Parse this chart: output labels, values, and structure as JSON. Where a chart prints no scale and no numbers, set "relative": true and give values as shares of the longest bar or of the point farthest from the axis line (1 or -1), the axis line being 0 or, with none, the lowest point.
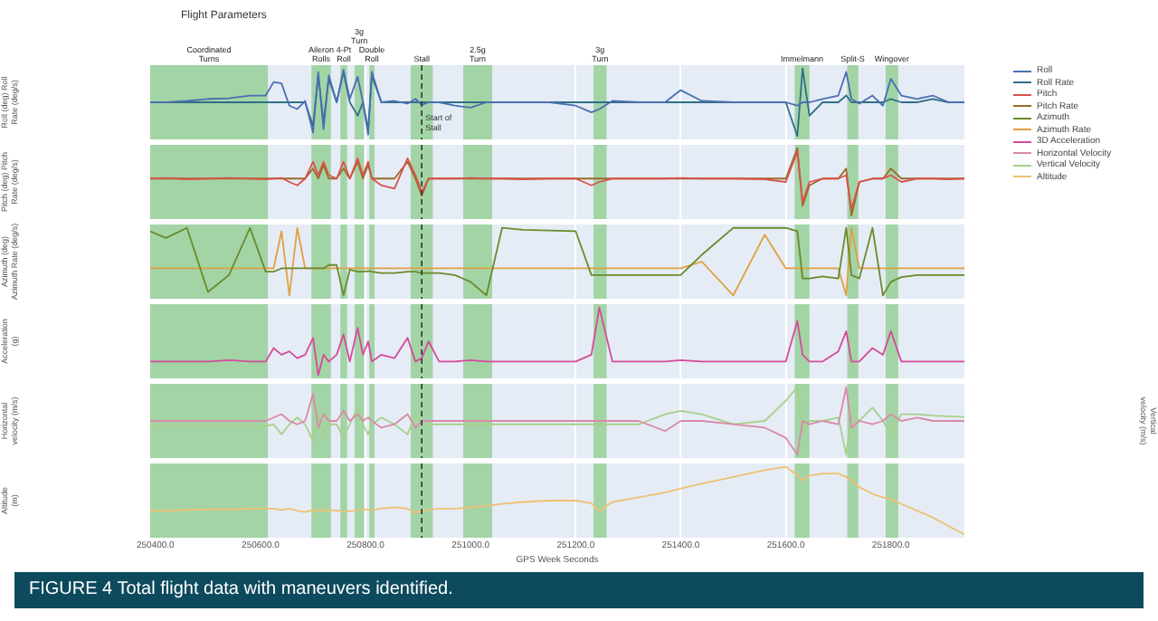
{
  "chart_data": [
    {
      "type": "line",
      "title": "Flight Parameters",
      "ylabel": "Roll (deg) Roll Rate (deg/s)",
      "relative": true,
      "legend": "right",
      "marker": "none",
      "line_style": "solid",
      "grid": "x",
      "tick_labels": false,
      "xlim": [
        250390,
        251940
      ],
      "xticks": [
        250400,
        250600,
        250800,
        251000,
        251200,
        251400,
        251600,
        251800
      ],
      "x": [
        250390,
        250420,
        250460,
        250500,
        250540,
        250580,
        250610,
        250625,
        250640,
        250655,
        250670,
        250685,
        250700,
        250710,
        250720,
        250730,
        250745,
        250758,
        250770,
        250785,
        250795,
        250805,
        250812,
        250830,
        250855,
        250880,
        250895,
        250907,
        250920,
        250940,
        250970,
        251000,
        251030,
        251060,
        251100,
        251150,
        251200,
        251230,
        251245,
        251270,
        251320,
        251370,
        251400,
        251440,
        251500,
        251560,
        251600,
        251622,
        251632,
        251645,
        251670,
        251700,
        251715,
        251725,
        251740,
        251765,
        251785,
        251800,
        251820,
        251850,
        251880,
        251910,
        251940
      ],
      "series": [
        {
          "name": "Roll",
          "color": "#4a6fb0",
          "values": [
            0.5,
            0.5,
            0.52,
            0.55,
            0.56,
            0.6,
            0.6,
            0.8,
            0.78,
            0.45,
            0.4,
            0.52,
            0.05,
            0.95,
            0.1,
            0.9,
            0.5,
            0.98,
            0.55,
            0.88,
            0.5,
            0.02,
            0.95,
            0.5,
            0.52,
            0.48,
            0.55,
            0.46,
            0.5,
            0.5,
            0.45,
            0.42,
            0.5,
            0.5,
            0.5,
            0.5,
            0.45,
            0.35,
            0.4,
            0.52,
            0.5,
            0.5,
            0.68,
            0.52,
            0.5,
            0.5,
            0.5,
            0.45,
            0.5,
            0.5,
            0.55,
            0.6,
            0.95,
            0.55,
            0.48,
            0.6,
            0.45,
            0.85,
            0.6,
            0.55,
            0.6,
            0.5,
            0.5
          ]
        },
        {
          "name": "Roll Rate",
          "color": "#2f6f86",
          "values": [
            0.5,
            0.5,
            0.5,
            0.5,
            0.5,
            0.5,
            0.5,
            0.5,
            0.5,
            0.5,
            0.5,
            0.5,
            0.15,
            0.9,
            0.2,
            0.85,
            0.5,
            0.95,
            0.5,
            0.3,
            0.5,
            0.1,
            0.9,
            0.5,
            0.5,
            0.5,
            0.5,
            0.5,
            0.5,
            0.5,
            0.5,
            0.5,
            0.5,
            0.5,
            0.5,
            0.5,
            0.5,
            0.5,
            0.5,
            0.5,
            0.5,
            0.5,
            0.5,
            0.5,
            0.5,
            0.5,
            0.5,
            0.0,
            1.0,
            0.3,
            0.5,
            0.5,
            0.6,
            0.5,
            0.5,
            0.5,
            0.5,
            0.55,
            0.5,
            0.5,
            0.55,
            0.5,
            0.5
          ]
        }
      ],
      "bands": [
        {
          "axis": "x",
          "from": 250390,
          "to": 250614,
          "label": "Coordinated Turns",
          "color": "#a3d4a6"
        },
        {
          "axis": "x",
          "from": 250697,
          "to": 250734,
          "label": "Aileron Rolls",
          "color": "#a3d4a6"
        },
        {
          "axis": "x",
          "from": 250752,
          "to": 250765,
          "label": "4-Pt Roll",
          "color": "#a3d4a6"
        },
        {
          "axis": "x",
          "from": 250779,
          "to": 250797,
          "label": "3g Turn",
          "color": "#a3d4a6"
        },
        {
          "axis": "x",
          "from": 250807,
          "to": 250817,
          "label": "Double Roll",
          "color": "#a3d4a6"
        },
        {
          "axis": "x",
          "from": 250886,
          "to": 250928,
          "label": "Stall",
          "color": "#a3d4a6"
        },
        {
          "axis": "x",
          "from": 250986,
          "to": 251041,
          "label": "2.5g Turn",
          "color": "#a3d4a6"
        },
        {
          "axis": "x",
          "from": 251234,
          "to": 251259,
          "label": "3g Turn",
          "color": "#a3d4a6"
        },
        {
          "axis": "x",
          "from": 251617,
          "to": 251645,
          "label": "Immelmann",
          "color": "#a3d4a6"
        },
        {
          "axis": "x",
          "from": 251717,
          "to": 251738,
          "label": "Split-S",
          "color": "#a3d4a6"
        },
        {
          "axis": "x",
          "from": 251790,
          "to": 251814,
          "label": "Wingover",
          "color": "#a3d4a6"
        }
      ],
      "ref_lines": [
        {
          "axis": "x",
          "value": 250907,
          "label": "Start of Stall",
          "color": "#333333",
          "line_style": "dashed"
        }
      ]
    },
    {
      "type": "line",
      "ylabel": "Pitch (deg) Pitch Rate (deg/s)",
      "relative": true,
      "legend": "right",
      "marker": "none",
      "line_style": "solid",
      "grid": "x",
      "tick_labels": false,
      "xlim": [
        250390,
        251940
      ],
      "xticks": [
        250400,
        250600,
        250800,
        251000,
        251200,
        251400,
        251600,
        251800
      ],
      "x": [
        250390,
        250420,
        250460,
        250500,
        250540,
        250580,
        250610,
        250625,
        250640,
        250655,
        250670,
        250685,
        250700,
        250710,
        250720,
        250730,
        250745,
        250758,
        250770,
        250785,
        250795,
        250805,
        250812,
        250830,
        250855,
        250880,
        250895,
        250907,
        250920,
        250940,
        250970,
        251000,
        251030,
        251060,
        251100,
        251150,
        251200,
        251230,
        251245,
        251270,
        251320,
        251370,
        251400,
        251440,
        251500,
        251560,
        251600,
        251622,
        251632,
        251645,
        251670,
        251700,
        251715,
        251725,
        251740,
        251765,
        251785,
        251800,
        251820,
        251850,
        251880,
        251910,
        251940
      ],
      "series": [
        {
          "name": "Pitch",
          "color": "#d9534a",
          "values": [
            0.55,
            0.56,
            0.54,
            0.55,
            0.56,
            0.55,
            0.54,
            0.55,
            0.56,
            0.5,
            0.45,
            0.55,
            0.8,
            0.6,
            0.8,
            0.6,
            0.55,
            0.8,
            0.55,
            0.85,
            0.6,
            0.8,
            0.55,
            0.45,
            0.4,
            0.85,
            0.6,
            0.35,
            0.55,
            0.55,
            0.55,
            0.56,
            0.55,
            0.55,
            0.54,
            0.55,
            0.55,
            0.45,
            0.5,
            0.55,
            0.55,
            0.55,
            0.56,
            0.55,
            0.55,
            0.54,
            0.5,
            0.95,
            0.2,
            0.5,
            0.55,
            0.55,
            0.6,
            0.1,
            0.5,
            0.55,
            0.55,
            0.6,
            0.5,
            0.55,
            0.55,
            0.54,
            0.55
          ]
        },
        {
          "name": "Pitch Rate",
          "color": "#9b6a2a",
          "values": [
            0.55,
            0.55,
            0.55,
            0.55,
            0.55,
            0.55,
            0.55,
            0.55,
            0.55,
            0.55,
            0.55,
            0.55,
            0.7,
            0.55,
            0.75,
            0.55,
            0.55,
            0.7,
            0.55,
            0.8,
            0.55,
            0.75,
            0.55,
            0.55,
            0.55,
            0.8,
            0.55,
            0.3,
            0.55,
            0.55,
            0.55,
            0.55,
            0.55,
            0.55,
            0.55,
            0.55,
            0.55,
            0.55,
            0.55,
            0.55,
            0.55,
            0.55,
            0.55,
            0.55,
            0.55,
            0.55,
            0.55,
            1.0,
            0.15,
            0.45,
            0.55,
            0.55,
            0.7,
            0.0,
            0.5,
            0.55,
            0.55,
            0.7,
            0.55,
            0.55,
            0.55,
            0.55,
            0.55
          ]
        }
      ],
      "bands": [
        {
          "axis": "x",
          "from": 250390,
          "to": 250614,
          "color": "#a3d4a6"
        },
        {
          "axis": "x",
          "from": 250697,
          "to": 250734,
          "color": "#a3d4a6"
        },
        {
          "axis": "x",
          "from": 250752,
          "to": 250765,
          "color": "#a3d4a6"
        },
        {
          "axis": "x",
          "from": 250779,
          "to": 250797,
          "color": "#a3d4a6"
        },
        {
          "axis": "x",
          "from": 250807,
          "to": 250817,
          "color": "#a3d4a6"
        },
        {
          "axis": "x",
          "from": 250886,
          "to": 250928,
          "color": "#a3d4a6"
        },
        {
          "axis": "x",
          "from": 250986,
          "to": 251041,
          "color": "#a3d4a6"
        },
        {
          "axis": "x",
          "from": 251234,
          "to": 251259,
          "color": "#a3d4a6"
        },
        {
          "axis": "x",
          "from": 251617,
          "to": 251645,
          "color": "#a3d4a6"
        },
        {
          "axis": "x",
          "from": 251717,
          "to": 251738,
          "color": "#a3d4a6"
        },
        {
          "axis": "x",
          "from": 251790,
          "to": 251814,
          "color": "#a3d4a6"
        }
      ],
      "ref_lines": [
        {
          "axis": "x",
          "value": 250907,
          "color": "#333333",
          "line_style": "dashed"
        }
      ]
    },
    {
      "type": "line",
      "ylabel": "Azimuth (deg) Azimuth Rate (deg/s)",
      "relative": true,
      "legend": "right",
      "marker": "none",
      "line_style": "solid",
      "grid": "x",
      "tick_labels": false,
      "xlim": [
        250390,
        251940
      ],
      "xticks": [
        250400,
        250600,
        250800,
        251000,
        251200,
        251400,
        251600,
        251800
      ],
      "x": [
        250390,
        250420,
        250460,
        250500,
        250540,
        250580,
        250610,
        250625,
        250640,
        250655,
        250670,
        250685,
        250700,
        250710,
        250720,
        250730,
        250745,
        250758,
        250770,
        250785,
        250795,
        250805,
        250812,
        250830,
        250855,
        250880,
        250895,
        250907,
        250920,
        250940,
        250970,
        251000,
        251030,
        251060,
        251100,
        251150,
        251200,
        251230,
        251245,
        251270,
        251320,
        251370,
        251400,
        251440,
        251500,
        251560,
        251600,
        251622,
        251632,
        251645,
        251670,
        251700,
        251715,
        251725,
        251740,
        251765,
        251785,
        251800,
        251820,
        251850,
        251880,
        251910,
        251940
      ],
      "series": [
        {
          "name": "Azimuth",
          "color": "#6a8a2a",
          "values": [
            0.95,
            0.85,
            1.0,
            0.05,
            0.3,
            1.0,
            0.35,
            0.35,
            0.4,
            0.4,
            0.4,
            0.4,
            0.4,
            0.4,
            0.4,
            0.45,
            0.45,
            0.0,
            0.38,
            0.35,
            0.35,
            0.36,
            0.35,
            0.33,
            0.33,
            0.35,
            0.35,
            0.33,
            0.33,
            0.33,
            0.3,
            0.2,
            0.0,
            1.0,
            0.97,
            0.96,
            0.95,
            0.3,
            0.3,
            0.3,
            0.3,
            0.3,
            0.3,
            0.6,
            1.0,
            1.0,
            1.0,
            0.95,
            0.25,
            0.25,
            0.28,
            0.25,
            1.0,
            0.3,
            0.25,
            1.0,
            0.0,
            0.2,
            0.27,
            0.3,
            0.3,
            0.3,
            0.3
          ]
        },
        {
          "name": "Azimuth Rate",
          "color": "#e0a040",
          "values": [
            0.4,
            0.4,
            0.4,
            0.4,
            0.4,
            0.4,
            0.4,
            0.4,
            0.95,
            0.0,
            1.0,
            0.4,
            0.4,
            0.4,
            0.4,
            0.4,
            0.4,
            0.4,
            0.4,
            0.4,
            0.4,
            0.4,
            0.4,
            0.4,
            0.4,
            0.4,
            0.4,
            0.4,
            0.4,
            0.4,
            0.4,
            0.4,
            0.4,
            0.4,
            0.4,
            0.4,
            0.4,
            0.4,
            0.4,
            0.4,
            0.4,
            0.4,
            0.4,
            0.5,
            0.0,
            0.9,
            0.4,
            0.4,
            0.4,
            0.4,
            0.4,
            0.4,
            0.0,
            1.0,
            0.4,
            0.4,
            0.4,
            0.4,
            0.4,
            0.4,
            0.4,
            0.4,
            0.4
          ]
        }
      ],
      "bands": [
        {
          "axis": "x",
          "from": 250390,
          "to": 250614,
          "color": "#a3d4a6"
        },
        {
          "axis": "x",
          "from": 250697,
          "to": 250734,
          "color": "#a3d4a6"
        },
        {
          "axis": "x",
          "from": 250752,
          "to": 250765,
          "color": "#a3d4a6"
        },
        {
          "axis": "x",
          "from": 250779,
          "to": 250797,
          "color": "#a3d4a6"
        },
        {
          "axis": "x",
          "from": 250807,
          "to": 250817,
          "color": "#a3d4a6"
        },
        {
          "axis": "x",
          "from": 250886,
          "to": 250928,
          "color": "#a3d4a6"
        },
        {
          "axis": "x",
          "from": 250986,
          "to": 251041,
          "color": "#a3d4a6"
        },
        {
          "axis": "x",
          "from": 251234,
          "to": 251259,
          "color": "#a3d4a6"
        },
        {
          "axis": "x",
          "from": 251617,
          "to": 251645,
          "color": "#a3d4a6"
        },
        {
          "axis": "x",
          "from": 251717,
          "to": 251738,
          "color": "#a3d4a6"
        },
        {
          "axis": "x",
          "from": 251790,
          "to": 251814,
          "color": "#a3d4a6"
        }
      ],
      "ref_lines": [
        {
          "axis": "x",
          "value": 250907,
          "color": "#333333",
          "line_style": "dashed"
        }
      ]
    },
    {
      "type": "line",
      "ylabel": "Acceleration (g)",
      "relative": true,
      "legend": "right",
      "marker": "none",
      "line_style": "solid",
      "grid": "x",
      "tick_labels": false,
      "xlim": [
        250390,
        251940
      ],
      "xticks": [
        250400,
        250600,
        250800,
        251000,
        251200,
        251400,
        251600,
        251800
      ],
      "x": [
        250390,
        250420,
        250460,
        250500,
        250540,
        250580,
        250610,
        250625,
        250640,
        250655,
        250670,
        250685,
        250700,
        250710,
        250720,
        250730,
        250745,
        250758,
        250770,
        250785,
        250795,
        250805,
        250812,
        250830,
        250855,
        250880,
        250895,
        250907,
        250920,
        250940,
        250970,
        251000,
        251030,
        251060,
        251100,
        251150,
        251200,
        251230,
        251245,
        251270,
        251320,
        251370,
        251400,
        251440,
        251500,
        251560,
        251600,
        251622,
        251632,
        251645,
        251670,
        251700,
        251715,
        251725,
        251740,
        251765,
        251785,
        251800,
        251820,
        251850,
        251880,
        251910,
        251940
      ],
      "series": [
        {
          "name": "3D Acceleration",
          "color": "#d64a9a",
          "values": [
            0.2,
            0.2,
            0.2,
            0.2,
            0.22,
            0.2,
            0.2,
            0.4,
            0.3,
            0.35,
            0.25,
            0.3,
            0.55,
            0.0,
            0.3,
            0.2,
            0.3,
            0.6,
            0.2,
            0.7,
            0.3,
            0.5,
            0.2,
            0.3,
            0.25,
            0.55,
            0.2,
            0.25,
            0.5,
            0.2,
            0.2,
            0.22,
            0.2,
            0.2,
            0.2,
            0.2,
            0.2,
            0.3,
            1.0,
            0.2,
            0.2,
            0.2,
            0.22,
            0.2,
            0.2,
            0.2,
            0.2,
            0.8,
            0.3,
            0.2,
            0.2,
            0.35,
            0.65,
            0.2,
            0.2,
            0.4,
            0.3,
            0.65,
            0.2,
            0.2,
            0.2,
            0.2,
            0.2
          ]
        }
      ],
      "bands": [
        {
          "axis": "x",
          "from": 250390,
          "to": 250614,
          "color": "#a3d4a6"
        },
        {
          "axis": "x",
          "from": 250697,
          "to": 250734,
          "color": "#a3d4a6"
        },
        {
          "axis": "x",
          "from": 250752,
          "to": 250765,
          "color": "#a3d4a6"
        },
        {
          "axis": "x",
          "from": 250779,
          "to": 250797,
          "color": "#a3d4a6"
        },
        {
          "axis": "x",
          "from": 250807,
          "to": 250817,
          "color": "#a3d4a6"
        },
        {
          "axis": "x",
          "from": 250886,
          "to": 250928,
          "color": "#a3d4a6"
        },
        {
          "axis": "x",
          "from": 250986,
          "to": 251041,
          "color": "#a3d4a6"
        },
        {
          "axis": "x",
          "from": 251234,
          "to": 251259,
          "color": "#a3d4a6"
        },
        {
          "axis": "x",
          "from": 251617,
          "to": 251645,
          "color": "#a3d4a6"
        },
        {
          "axis": "x",
          "from": 251717,
          "to": 251738,
          "color": "#a3d4a6"
        },
        {
          "axis": "x",
          "from": 251790,
          "to": 251814,
          "color": "#a3d4a6"
        }
      ],
      "ref_lines": [
        {
          "axis": "x",
          "value": 250907,
          "color": "#333333",
          "line_style": "dashed"
        }
      ]
    },
    {
      "type": "line",
      "ylabel": "Horizontal velocity (m/s)",
      "y2label": "Vertical velocity (m/s)",
      "relative": true,
      "legend": "right",
      "marker": "none",
      "line_style": "solid",
      "grid": "x",
      "tick_labels": false,
      "xlim": [
        250390,
        251940
      ],
      "xticks": [
        250400,
        250600,
        250800,
        251000,
        251200,
        251400,
        251600,
        251800
      ],
      "x": [
        250390,
        250420,
        250460,
        250500,
        250540,
        250580,
        250610,
        250625,
        250640,
        250655,
        250670,
        250685,
        250700,
        250710,
        250720,
        250730,
        250745,
        250758,
        250770,
        250785,
        250795,
        250805,
        250812,
        250830,
        250855,
        250880,
        250895,
        250907,
        250920,
        250940,
        250970,
        251000,
        251030,
        251060,
        251100,
        251150,
        251200,
        251230,
        251245,
        251270,
        251320,
        251370,
        251400,
        251440,
        251500,
        251560,
        251600,
        251622,
        251632,
        251645,
        251670,
        251700,
        251715,
        251725,
        251740,
        251765,
        251785,
        251800,
        251820,
        251850,
        251880,
        251910,
        251940
      ],
      "series": [
        {
          "name": "Horizontal Velocity",
          "color": "#d98aa8",
          "values": [
            0.5,
            0.5,
            0.5,
            0.5,
            0.5,
            0.5,
            0.5,
            0.55,
            0.6,
            0.5,
            0.45,
            0.5,
            0.9,
            0.4,
            0.6,
            0.5,
            0.5,
            0.65,
            0.5,
            0.6,
            0.5,
            0.55,
            0.5,
            0.4,
            0.45,
            0.6,
            0.4,
            0.5,
            0.5,
            0.5,
            0.5,
            0.5,
            0.5,
            0.5,
            0.5,
            0.5,
            0.5,
            0.5,
            0.5,
            0.5,
            0.5,
            0.35,
            0.5,
            0.5,
            0.45,
            0.4,
            0.25,
            0.0,
            0.5,
            0.45,
            0.5,
            0.45,
            1.0,
            0.4,
            0.5,
            0.45,
            0.5,
            0.6,
            0.5,
            0.55,
            0.5,
            0.5,
            0.5
          ]
        },
        {
          "name": "Vertical Velocity",
          "color": "#a8d08a",
          "axis": "y2",
          "values": [
            0.42,
            0.42,
            0.42,
            0.42,
            0.42,
            0.42,
            0.42,
            0.45,
            0.3,
            0.45,
            0.55,
            0.45,
            0.2,
            0.6,
            0.3,
            0.45,
            0.45,
            0.25,
            0.45,
            0.7,
            0.45,
            0.3,
            0.45,
            0.55,
            0.45,
            0.3,
            0.6,
            0.45,
            0.45,
            0.45,
            0.45,
            0.45,
            0.45,
            0.45,
            0.45,
            0.45,
            0.45,
            0.45,
            0.45,
            0.45,
            0.45,
            0.6,
            0.65,
            0.6,
            0.45,
            0.5,
            0.8,
            1.0,
            0.3,
            0.5,
            0.5,
            0.55,
            0.0,
            0.6,
            0.5,
            0.7,
            0.5,
            0.3,
            0.6,
            0.6,
            0.58,
            0.57,
            0.56
          ]
        }
      ],
      "bands": [
        {
          "axis": "x",
          "from": 250390,
          "to": 250614,
          "color": "#a3d4a6"
        },
        {
          "axis": "x",
          "from": 250697,
          "to": 250734,
          "color": "#a3d4a6"
        },
        {
          "axis": "x",
          "from": 250752,
          "to": 250765,
          "color": "#a3d4a6"
        },
        {
          "axis": "x",
          "from": 250779,
          "to": 250797,
          "color": "#a3d4a6"
        },
        {
          "axis": "x",
          "from": 250807,
          "to": 250817,
          "color": "#a3d4a6"
        },
        {
          "axis": "x",
          "from": 250886,
          "to": 250928,
          "color": "#a3d4a6"
        },
        {
          "axis": "x",
          "from": 250986,
          "to": 251041,
          "color": "#a3d4a6"
        },
        {
          "axis": "x",
          "from": 251234,
          "to": 251259,
          "color": "#a3d4a6"
        },
        {
          "axis": "x",
          "from": 251617,
          "to": 251645,
          "color": "#a3d4a6"
        },
        {
          "axis": "x",
          "from": 251717,
          "to": 251738,
          "color": "#a3d4a6"
        },
        {
          "axis": "x",
          "from": 251790,
          "to": 251814,
          "color": "#a3d4a6"
        }
      ],
      "ref_lines": [
        {
          "axis": "x",
          "value": 250907,
          "color": "#333333",
          "line_style": "dashed"
        }
      ]
    },
    {
      "type": "line",
      "ylabel": "Altitude (m)",
      "xlabel": "GPS Week Seconds",
      "relative": true,
      "legend": "right",
      "marker": "none",
      "line_style": "solid",
      "grid": "x",
      "tick_labels": "x",
      "xlim": [
        250390,
        251940
      ],
      "xticks": [
        {
          "value": 250400,
          "label": "250400.0"
        },
        {
          "value": 250600,
          "label": "250600.0"
        },
        {
          "value": 250800,
          "label": "250800.0"
        },
        {
          "value": 251000,
          "label": "251000.0"
        },
        {
          "value": 251200,
          "label": "251200.0"
        },
        {
          "value": 251400,
          "label": "251400.0"
        },
        {
          "value": 251600,
          "label": "251600.0"
        },
        {
          "value": 251800,
          "label": "251800.0"
        }
      ],
      "x": [
        250390,
        250420,
        250460,
        250500,
        250540,
        250580,
        250610,
        250625,
        250640,
        250655,
        250670,
        250685,
        250700,
        250710,
        250720,
        250730,
        250745,
        250758,
        250770,
        250785,
        250795,
        250805,
        250812,
        250830,
        250855,
        250880,
        250895,
        250907,
        250920,
        250940,
        250970,
        251000,
        251030,
        251060,
        251100,
        251150,
        251200,
        251230,
        251245,
        251270,
        251320,
        251370,
        251400,
        251440,
        251500,
        251560,
        251600,
        251622,
        251632,
        251645,
        251670,
        251700,
        251715,
        251725,
        251740,
        251765,
        251785,
        251800,
        251820,
        251850,
        251880,
        251910,
        251940
      ],
      "series": [
        {
          "name": "Altitude",
          "color": "#f0c070",
          "values": [
            0.35,
            0.35,
            0.36,
            0.37,
            0.37,
            0.38,
            0.38,
            0.38,
            0.36,
            0.38,
            0.35,
            0.33,
            0.36,
            0.35,
            0.35,
            0.36,
            0.35,
            0.34,
            0.34,
            0.36,
            0.37,
            0.36,
            0.36,
            0.38,
            0.4,
            0.38,
            0.32,
            0.35,
            0.36,
            0.38,
            0.38,
            0.4,
            0.42,
            0.45,
            0.48,
            0.5,
            0.5,
            0.46,
            0.35,
            0.48,
            0.55,
            0.62,
            0.68,
            0.75,
            0.85,
            0.95,
            1.0,
            0.88,
            0.8,
            0.87,
            0.9,
            0.9,
            0.85,
            0.8,
            0.7,
            0.6,
            0.55,
            0.52,
            0.45,
            0.35,
            0.25,
            0.12,
            0.0
          ]
        }
      ],
      "bands": [
        {
          "axis": "x",
          "from": 250390,
          "to": 250614,
          "color": "#a3d4a6"
        },
        {
          "axis": "x",
          "from": 250697,
          "to": 250734,
          "color": "#a3d4a6"
        },
        {
          "axis": "x",
          "from": 250752,
          "to": 250765,
          "color": "#a3d4a6"
        },
        {
          "axis": "x",
          "from": 250779,
          "to": 250797,
          "color": "#a3d4a6"
        },
        {
          "axis": "x",
          "from": 250807,
          "to": 250817,
          "color": "#a3d4a6"
        },
        {
          "axis": "x",
          "from": 250886,
          "to": 250928,
          "color": "#a3d4a6"
        },
        {
          "axis": "x",
          "from": 250986,
          "to": 251041,
          "color": "#a3d4a6"
        },
        {
          "axis": "x",
          "from": 251234,
          "to": 251259,
          "color": "#a3d4a6"
        },
        {
          "axis": "x",
          "from": 251617,
          "to": 251645,
          "color": "#a3d4a6"
        },
        {
          "axis": "x",
          "from": 251717,
          "to": 251738,
          "color": "#a3d4a6"
        },
        {
          "axis": "x",
          "from": 251790,
          "to": 251814,
          "color": "#a3d4a6"
        }
      ],
      "ref_lines": [
        {
          "axis": "x",
          "value": 250907,
          "color": "#333333",
          "line_style": "dashed"
        }
      ],
      "annotations": [
        "FIGURE 4 Total flight data with maneuvers identified."
      ]
    }
  ]
}
